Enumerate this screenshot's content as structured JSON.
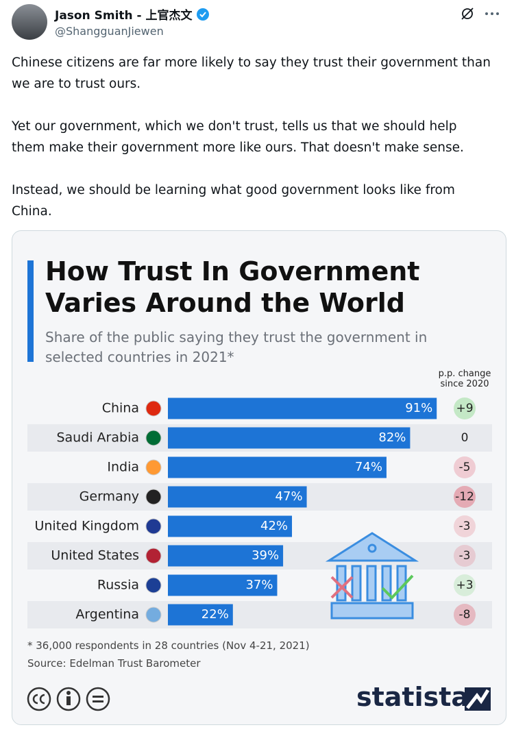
{
  "tweet": {
    "author_name": "Jason Smith - 上官杰文",
    "handle": "@ShangguanJiewen",
    "text": [
      "Chinese citizens are far more likely to say they trust their government than we are to trust ours.",
      "Yet our government, which we don't trust, tells us that we should help them make their government more like ours. That doesn't make sense.",
      "Instead, we should be learning what good government looks like from China."
    ]
  },
  "chart_data": {
    "type": "bar",
    "title": "How Trust In Government Varies Around the World",
    "subtitle": "Share of the public saying they trust the government in selected countries in 2021*",
    "categories": [
      "China",
      "Saudi Arabia",
      "India",
      "Germany",
      "United Kingdom",
      "United States",
      "Russia",
      "Argentina"
    ],
    "values": [
      91,
      82,
      74,
      47,
      42,
      39,
      37,
      22
    ],
    "value_labels": [
      "91%",
      "82%",
      "74%",
      "47%",
      "42%",
      "39%",
      "37%",
      "22%"
    ],
    "color": "#1d74d6",
    "change_header": "p.p. change since 2020",
    "changes": [
      9,
      0,
      -5,
      -12,
      -3,
      -3,
      3,
      -8
    ],
    "change_labels": [
      "+9",
      "0",
      "-5",
      "-12",
      "-3",
      "-3",
      "+3",
      "-8"
    ],
    "footnote": "* 36,000 respondents in 28 countries (Nov 4-21, 2021)",
    "source": "Source: Edelman Trust Barometer",
    "brand": "statista"
  }
}
